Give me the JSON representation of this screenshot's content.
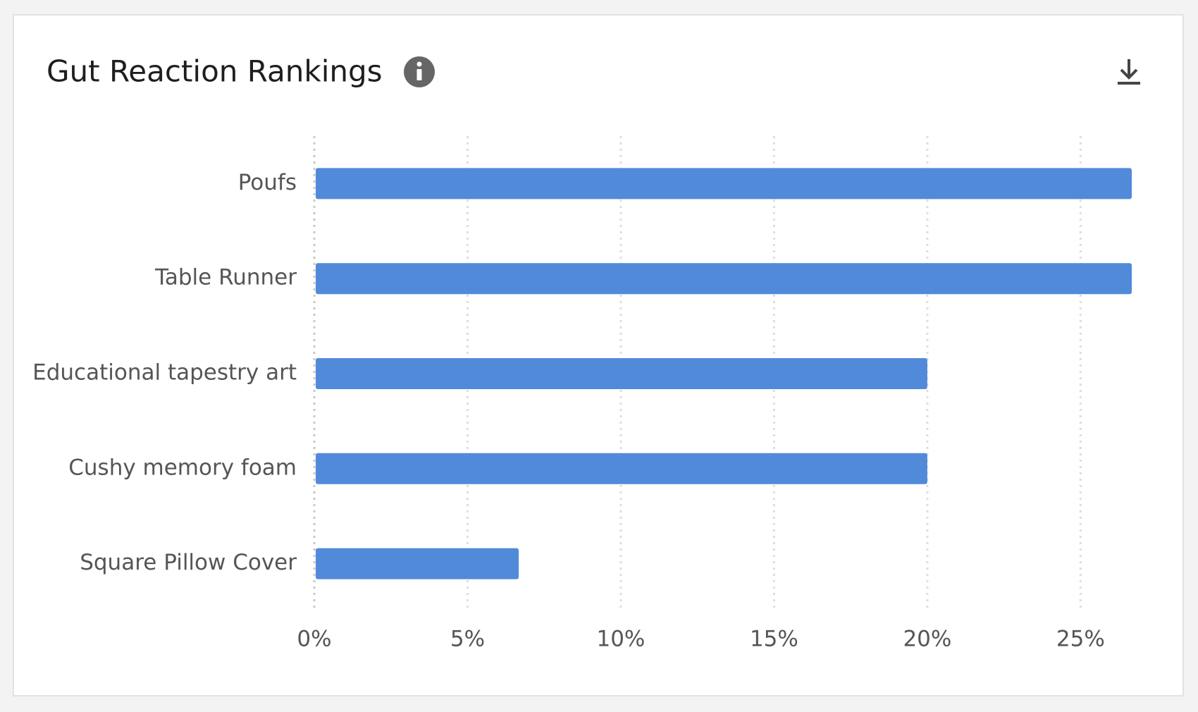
{
  "chart_data": {
    "type": "bar",
    "orientation": "horizontal",
    "title": "Gut Reaction Rankings",
    "categories": [
      "Poufs",
      "Table Runner",
      "Educational tapestry art",
      "Cushy memory foam",
      "Square Pillow Cover"
    ],
    "values": [
      26.67,
      26.67,
      20,
      20,
      6.67
    ],
    "color": "#528ada",
    "xlim": [
      0,
      26.67
    ],
    "xticks": [
      {
        "value": 0,
        "label": "0%"
      },
      {
        "value": 5,
        "label": "5%"
      },
      {
        "value": 10,
        "label": "10%"
      },
      {
        "value": 15,
        "label": "15%"
      },
      {
        "value": 20,
        "label": "20%"
      },
      {
        "value": 25,
        "label": "25%"
      }
    ],
    "grid": true
  }
}
